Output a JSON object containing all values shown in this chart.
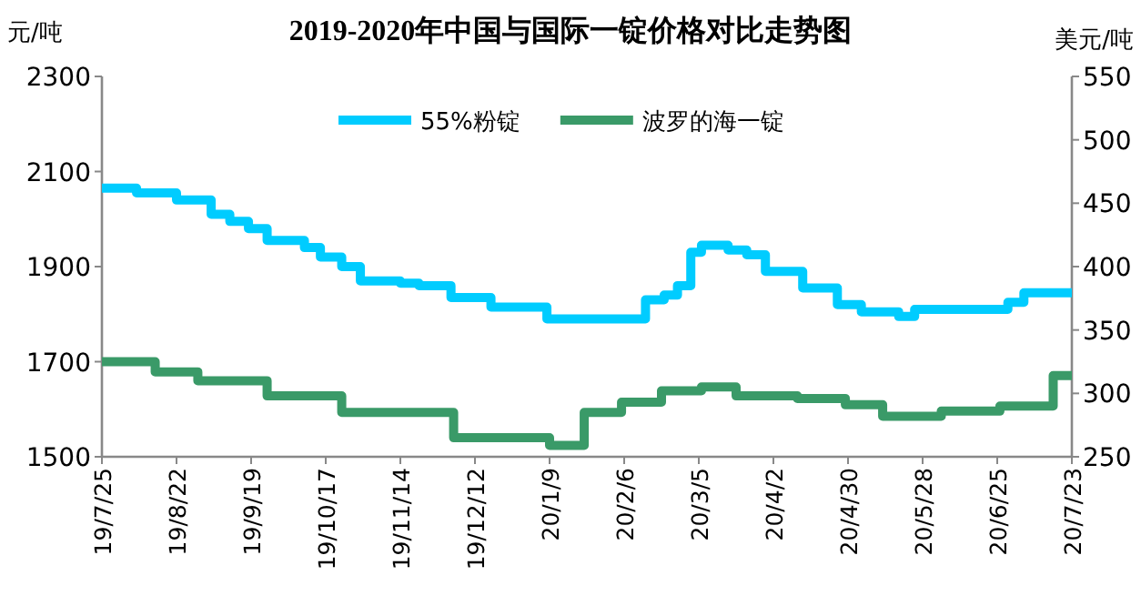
{
  "chart_data": {
    "type": "step",
    "title": "2019-2020年中国与国际一锭价格对比走势图",
    "ylabel": "元/吨",
    "y2label": "美元/吨",
    "xlim": [
      "2019-07-25",
      "2020-07-23"
    ],
    "xticks": [
      {
        "value": "2019-07-25",
        "label": "19/7/25"
      },
      {
        "value": "2019-08-22",
        "label": "19/8/22"
      },
      {
        "value": "2019-09-19",
        "label": "19/9/19"
      },
      {
        "value": "2019-10-17",
        "label": "19/10/17"
      },
      {
        "value": "2019-11-14",
        "label": "19/11/14"
      },
      {
        "value": "2019-12-12",
        "label": "19/12/12"
      },
      {
        "value": "2020-01-09",
        "label": "20/1/9"
      },
      {
        "value": "2020-02-06",
        "label": "20/2/6"
      },
      {
        "value": "2020-03-05",
        "label": "20/3/5"
      },
      {
        "value": "2020-04-02",
        "label": "20/4/2"
      },
      {
        "value": "2020-04-30",
        "label": "20/4/30"
      },
      {
        "value": "2020-05-28",
        "label": "20/5/28"
      },
      {
        "value": "2020-06-25",
        "label": "20/6/25"
      },
      {
        "value": "2020-07-23",
        "label": "20/7/23"
      }
    ],
    "ylim": [
      1500,
      2300
    ],
    "yticks": [
      1500,
      1700,
      1900,
      2100,
      2300
    ],
    "y2lim": [
      250,
      550
    ],
    "y2ticks": [
      250,
      300,
      350,
      400,
      450,
      500,
      550
    ],
    "legend": "top",
    "grid": false,
    "marker": "none",
    "line_style": "solid",
    "series": [
      {
        "name": "55%粉锭",
        "color": "#00ccff",
        "x": [
          "2019-07-25",
          "2019-08-07",
          "2019-08-22",
          "2019-09-04",
          "2019-09-11",
          "2019-09-18",
          "2019-09-25",
          "2019-10-09",
          "2019-10-15",
          "2019-10-23",
          "2019-10-30",
          "2019-11-14",
          "2019-11-21",
          "2019-12-03",
          "2019-12-18",
          "2020-01-08",
          "2020-02-14",
          "2020-02-21",
          "2020-02-26",
          "2020-03-02",
          "2020-03-06",
          "2020-03-16",
          "2020-03-23",
          "2020-03-30",
          "2020-04-13",
          "2020-04-26",
          "2020-05-05",
          "2020-05-19",
          "2020-05-25",
          "2020-06-29",
          "2020-07-05",
          "2020-07-23"
        ],
        "values": [
          2065,
          2055,
          2040,
          2010,
          1995,
          1980,
          1955,
          1940,
          1920,
          1900,
          1870,
          1865,
          1860,
          1835,
          1815,
          1790,
          1830,
          1840,
          1860,
          1930,
          1945,
          1935,
          1925,
          1890,
          1855,
          1820,
          1805,
          1795,
          1810,
          1825,
          1845,
          1845
        ]
      },
      {
        "name": "波罗的海一锭",
        "color": "#3a9a68",
        "axis": "y2",
        "x": [
          "2019-07-25",
          "2019-08-14",
          "2019-08-30",
          "2019-09-25",
          "2019-10-23",
          "2019-12-04",
          "2020-01-09",
          "2020-01-22",
          "2020-02-05",
          "2020-02-20",
          "2020-03-06",
          "2020-03-19",
          "2020-04-11",
          "2020-04-29",
          "2020-05-13",
          "2020-06-04",
          "2020-06-26",
          "2020-07-16",
          "2020-07-23"
        ],
        "values": [
          325,
          317,
          310,
          298,
          285,
          265,
          259,
          285,
          293,
          302,
          305,
          298,
          296,
          291,
          282,
          286,
          290,
          314,
          314
        ]
      }
    ]
  }
}
